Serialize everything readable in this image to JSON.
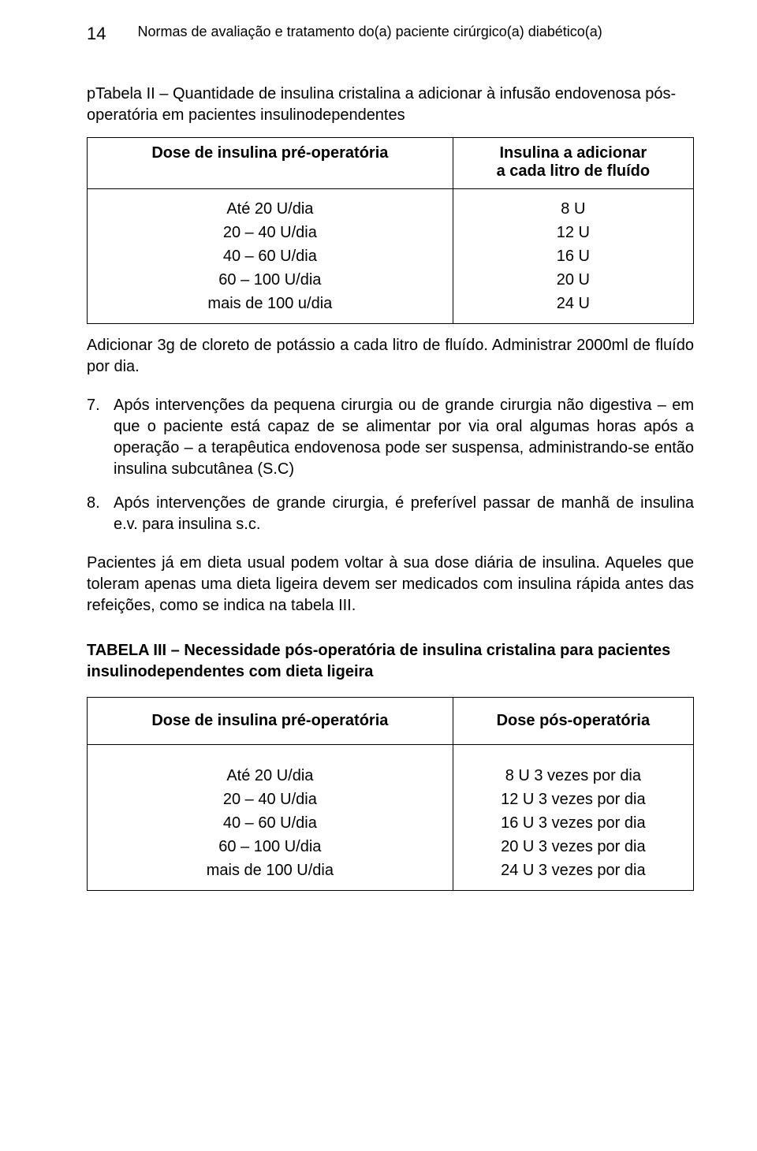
{
  "page_number": "14",
  "header_title": "Normas de avaliação e tratamento do(a) paciente cirúrgico(a) diabético(a)",
  "table2_caption": "pTabela II – Quantidade de insulina cristalina a adicionar à infusão endovenosa pós-operatória em pacientes insulinodependentes",
  "table2": {
    "col1_header": "Dose de insulina pré-operatória",
    "col2_header_line1": "Insulina a adicionar",
    "col2_header_line2": "a cada litro de fluído",
    "rows_left": [
      "Até  20 U/dia",
      "20 – 40 U/dia",
      "40 – 60 U/dia",
      "60 – 100 U/dia",
      "mais de 100 u/dia"
    ],
    "rows_right": [
      "8 U",
      "12 U",
      "16 U",
      "20 U",
      "24 U"
    ]
  },
  "para_after_table2": "Adicionar 3g de cloreto de potássio a cada litro de fluído. Administrar 2000ml de fluído por dia.",
  "list": [
    {
      "num": "7.",
      "text": "Após intervenções da pequena cirurgia ou de grande cirurgia não digestiva – em que o paciente está capaz de se alimentar por via oral algumas horas após a operação – a terapêutica endovenosa pode ser suspensa, administrando-se então insulina subcutânea (S.C)"
    },
    {
      "num": "8.",
      "text": "Após intervenções de grande cirurgia, é preferível passar de manhã de insulina e.v. para insulina s.c."
    }
  ],
  "para_after_list": "Pacientes já em dieta usual podem voltar à sua dose diária de insulina. Aqueles que toleram apenas uma dieta ligeira devem ser medicados com insulina rápida antes das refeições, como se indica na tabela III.",
  "table3_title": "TABELA III – Necessidade pós-operatória de insulina cristalina para pacientes insulinodependentes com dieta ligeira",
  "table3": {
    "col1_header": "Dose de insulina pré-operatória",
    "col2_header": "Dose pós-operatória",
    "rows_left": [
      "Até  20 U/dia",
      "20 – 40 U/dia",
      "40 – 60 U/dia",
      "60 – 100 U/dia",
      "mais de 100 U/dia"
    ],
    "rows_right": [
      "8 U 3 vezes por dia",
      "12 U 3 vezes por dia",
      "16 U 3 vezes por dia",
      "20 U 3 vezes por dia",
      "24 U 3 vezes por dia"
    ]
  }
}
